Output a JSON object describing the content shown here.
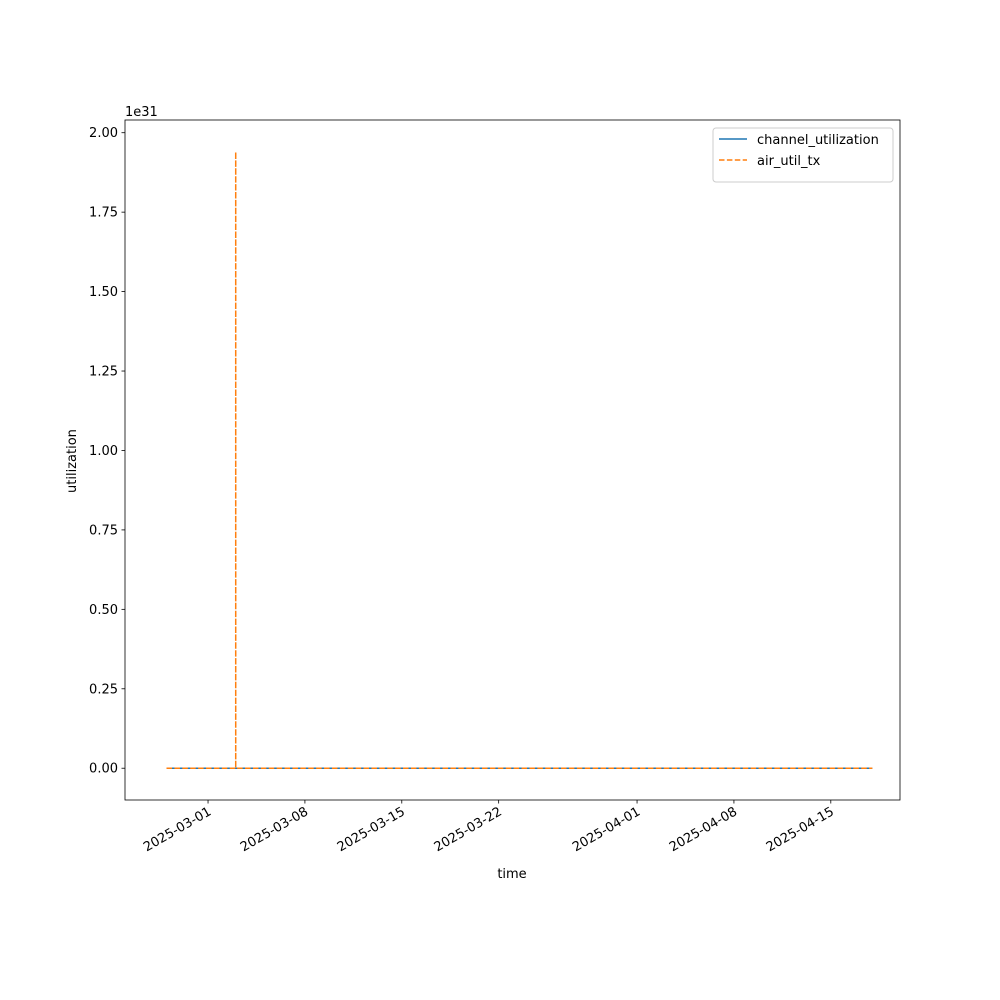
{
  "chart_data": {
    "type": "line",
    "x_label": "time",
    "y_label": "utilization",
    "y_offset_label": "1e31",
    "x": [
      "2025-02-26",
      "2025-03-03",
      "2025-03-03",
      "2025-03-03",
      "2025-04-18"
    ],
    "series": [
      {
        "name": "channel_utilization",
        "color": "#1f77b4",
        "style": "solid",
        "values": [
          0,
          0,
          0,
          0,
          0
        ]
      },
      {
        "name": "air_util_tx",
        "color": "#ff7f0e",
        "style": "dashed",
        "values": [
          0,
          0,
          1.94,
          0,
          0
        ]
      }
    ],
    "xlim": [
      "2025-02-23",
      "2025-04-20"
    ],
    "xticks": [
      "2025-03-01",
      "2025-03-08",
      "2025-03-15",
      "2025-03-22",
      "2025-04-01",
      "2025-04-08",
      "2025-04-15"
    ],
    "ylim": [
      -0.1,
      2.04
    ],
    "yticks": [
      {
        "value": 0,
        "label": "0.00"
      },
      {
        "value": 0.25,
        "label": "0.25"
      },
      {
        "value": 0.5,
        "label": "0.50"
      },
      {
        "value": 0.75,
        "label": "0.75"
      },
      {
        "value": 1,
        "label": "1.00"
      },
      {
        "value": 1.25,
        "label": "1.25"
      },
      {
        "value": 1.5,
        "label": "1.50"
      },
      {
        "value": 1.75,
        "label": "1.75"
      },
      {
        "value": 2,
        "label": "2.00"
      }
    ],
    "grid": false,
    "legend": "upper right"
  }
}
